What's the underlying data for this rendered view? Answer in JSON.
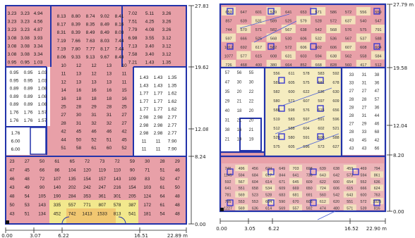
{
  "colors": {
    "pink": "#e8a0a8",
    "cream": "#f5ecc0",
    "wall": "#2233aa",
    "yellow": "#f3f08a",
    "orange": "#f0a050",
    "white": "#ffffff",
    "ipink": "#efc6c6"
  },
  "left_plan": {
    "y_ticks": [
      "27.83 m",
      "19.62",
      "12.08",
      "8.24",
      "0.00"
    ],
    "x_ticks": [
      "0.00",
      "3.07",
      "6.22",
      "16.51",
      "22.89 m"
    ],
    "top_left": [
      [
        "3.23",
        "3.23",
        "4.94"
      ],
      [
        "3.23",
        "3.23",
        "4.56"
      ],
      [
        "3.23",
        "3.23",
        "4.87"
      ],
      [
        "3.08",
        "3.08",
        "3.93"
      ],
      [
        "3.08",
        "3.08",
        "3.34"
      ],
      [
        "3.08",
        "3.08",
        "3.34"
      ],
      [
        "0.95",
        "0.95",
        "1.03"
      ]
    ],
    "top_mid": [
      [
        "8.13",
        "8.80",
        "8.74",
        "9.02",
        "8.41"
      ],
      [
        "8.17",
        "8.39",
        "8.35",
        "8.49",
        "8.16"
      ],
      [
        "8.31",
        "8.39",
        "8.49",
        "8.49",
        "8.03"
      ],
      [
        "7.19",
        "7.66",
        "7.63",
        "8.03",
        "7.44"
      ],
      [
        "7.19",
        "7.80",
        "7.77",
        "8.17",
        "7.44"
      ],
      [
        "8.06",
        "9.33",
        "9.13",
        "9.67",
        "8.48"
      ]
    ],
    "top_right": [
      [
        "7.02",
        "5.11",
        "3.26"
      ],
      [
        "7.51",
        "4.25",
        "3.26"
      ],
      [
        "7.79",
        "4.08",
        "3.26"
      ],
      [
        "6.98",
        "3.55",
        "3.12"
      ],
      [
        "7.13",
        "3.40",
        "3.12"
      ],
      [
        "7.58",
        "3.40",
        "3.12"
      ],
      [
        "7.21",
        "1.43",
        "1.35"
      ]
    ],
    "mid_left": [
      [
        "0.95",
        "0.95",
        "1.03"
      ],
      [
        "0.95",
        "0.95",
        "1.03"
      ],
      [
        "0.89",
        "0.89",
        "1.08"
      ],
      [
        "0.89",
        "0.89",
        "1.08"
      ],
      [
        "0.89",
        "0.89",
        "1.08"
      ],
      [
        "1.76",
        "1.76",
        "1.57"
      ],
      [
        "1.76",
        "1.76",
        "1.57"
      ]
    ],
    "mid_left2": [
      "1.76",
      "6.00",
      "6.00"
    ],
    "center": [
      [
        "10",
        "12",
        "12",
        "13",
        "10"
      ],
      [
        "11",
        "13",
        "12",
        "13",
        "11"
      ],
      [
        "12",
        "13",
        "13",
        "13",
        "11"
      ],
      [
        "14",
        "16",
        "16",
        "16",
        "15"
      ],
      [
        "16",
        "18",
        "18",
        "18",
        "16"
      ],
      [
        "25",
        "28",
        "29",
        "28",
        "25"
      ],
      [
        "27",
        "30",
        "31",
        "31",
        "27"
      ],
      [
        "28",
        "31",
        "32",
        "32",
        "27"
      ],
      [
        "42",
        "45",
        "46",
        "46",
        "42"
      ],
      [
        "44",
        "50",
        "52",
        "51",
        "45"
      ],
      [
        "51",
        "58",
        "61",
        "60",
        "52"
      ]
    ],
    "mid_right": [
      [
        "1.43",
        "1.43",
        "1.35"
      ],
      [
        "1.43",
        "1.43",
        "1.35"
      ],
      [
        "1.77",
        "1.77",
        "1.62"
      ],
      [
        "1.77",
        "1.77",
        "1.62"
      ],
      [
        "1.77",
        "1.77",
        "1.62"
      ],
      [
        "2.98",
        "2.98",
        "2.77"
      ],
      [
        "2.98",
        "2.98",
        "2.77"
      ],
      [
        "2.98",
        "2.98",
        "2.77"
      ],
      [
        "11",
        "11",
        "7.90"
      ],
      [
        "11",
        "11",
        "7.90"
      ]
    ],
    "bottom": [
      [
        "23",
        "27",
        "50",
        "61",
        "65",
        "72",
        "73",
        "72",
        "59",
        "30",
        "28",
        "29"
      ],
      [
        "47",
        "45",
        "66",
        "86",
        "104",
        "120",
        "119",
        "110",
        "90",
        "71",
        "51",
        "46"
      ],
      [
        "46",
        "48",
        "72",
        "107",
        "135",
        "154",
        "157",
        "143",
        "109",
        "83",
        "52",
        "47"
      ],
      [
        "43",
        "49",
        "90",
        "140",
        "202",
        "242",
        "247",
        "216",
        "154",
        "103",
        "61",
        "50"
      ],
      [
        "48",
        "54",
        "105",
        "190",
        "284",
        "353",
        "361",
        "301",
        "205",
        "124",
        "64",
        "48"
      ],
      [
        "50",
        "53",
        "143",
        "335",
        "557",
        "771",
        "807",
        "578",
        "387",
        "172",
        "61",
        "48"
      ],
      [
        "43",
        "51",
        "134",
        "452",
        "742",
        "1413",
        "1533",
        "813",
        "541",
        "181",
        "54",
        "48"
      ]
    ]
  },
  "right_plan": {
    "y_ticks": [
      "27.79 m",
      "19.58",
      "12.04",
      "8.20",
      "0.00"
    ],
    "x_ticks": [
      "0.00",
      "3.05",
      "6.22",
      "16.52",
      "22.90 m"
    ],
    "top_rows": [
      [
        "653",
        "647",
        "601",
        "539",
        "641",
        "653",
        "571",
        "586",
        "572",
        "556",
        "559"
      ],
      [
        "857",
        "639",
        "531",
        "589",
        "525",
        "579",
        "528",
        "572",
        "637",
        "540",
        "547"
      ],
      [
        "744",
        "570",
        "571",
        "582",
        "567",
        "638",
        "542",
        "568",
        "576",
        "575",
        "791"
      ],
      [
        "597",
        "666",
        "525",
        "568",
        "530",
        "606",
        "532",
        "536",
        "567",
        "537",
        "588"
      ],
      [
        "1012",
        "692",
        "617",
        "582",
        "572",
        "606",
        "602",
        "606",
        "607",
        "608",
        "604"
      ],
      [
        "1077",
        "577",
        "615",
        "608",
        "631",
        "603",
        "594",
        "638",
        "562",
        "558",
        "584"
      ],
      [
        "726",
        "468",
        "400",
        "380",
        "664",
        "852",
        "668",
        "828",
        "560",
        "417",
        "512"
      ]
    ],
    "left_col": [
      [
        "57",
        "56",
        "55"
      ],
      [
        "47",
        "30",
        "30"
      ],
      [
        "35",
        "20",
        "22"
      ],
      [
        "29",
        "21",
        "22"
      ],
      [
        "40",
        "18",
        "20"
      ],
      [
        "31",
        "21",
        "20"
      ],
      [
        "38",
        "16",
        "21"
      ],
      [
        "21",
        "19",
        "19"
      ]
    ],
    "center_rows": [
      [
        "556",
        "611",
        "578",
        "583",
        "592"
      ],
      [
        "581",
        "605",
        "575",
        "681",
        "678"
      ],
      [
        "582",
        "600",
        "622",
        "636",
        "630"
      ],
      [
        "580",
        "571",
        "607",
        "597",
        "609"
      ],
      [
        "588",
        "598",
        "576",
        "615",
        "656"
      ],
      [
        "519",
        "583",
        "597",
        "591",
        "596"
      ],
      [
        "512",
        "588",
        "604",
        "602",
        "521"
      ],
      [
        "529",
        "580",
        "591",
        "600",
        "588"
      ],
      [
        "575",
        "605",
        "596",
        "573",
        "627"
      ]
    ],
    "right_col": [
      [
        "33",
        "31",
        "38"
      ],
      [
        "33",
        "31",
        "36"
      ],
      [
        "27",
        "27",
        "47"
      ],
      [
        "28",
        "28",
        "57"
      ],
      [
        "28",
        "27",
        "36"
      ],
      [
        "28",
        "31",
        "44"
      ],
      [
        "27",
        "29",
        "46"
      ],
      [
        "28",
        "33",
        "68"
      ],
      [
        "43",
        "45",
        "42"
      ],
      [
        "43",
        "43",
        "66"
      ]
    ],
    "bottom_rows": [
      [
        "746",
        "496",
        "456",
        "624",
        "649",
        "703",
        "698",
        "639",
        "638",
        "459",
        "469",
        "794"
      ],
      [
        "1145",
        "594",
        "684",
        "617",
        "844",
        "641",
        "738",
        "643",
        "642",
        "573",
        "594",
        "861"
      ],
      [
        "592",
        "567",
        "604",
        "614",
        "671",
        "645",
        "609",
        "622",
        "600",
        "654",
        "552",
        "636"
      ],
      [
        "641",
        "551",
        "658",
        "534",
        "609",
        "669",
        "650",
        "724",
        "606",
        "615",
        "666",
        "624"
      ],
      [
        "781",
        "569",
        "523",
        "528",
        "683",
        "681",
        "691",
        "560",
        "542",
        "643",
        "600",
        "763"
      ],
      [
        "795",
        "553",
        "553",
        "604",
        "590",
        "670",
        "603",
        "612",
        "620",
        "551",
        "572",
        "1025"
      ],
      [
        "1227",
        "569",
        "636",
        "614",
        "569",
        "557",
        "592",
        "474",
        "480",
        "571",
        "539",
        "816"
      ]
    ]
  }
}
